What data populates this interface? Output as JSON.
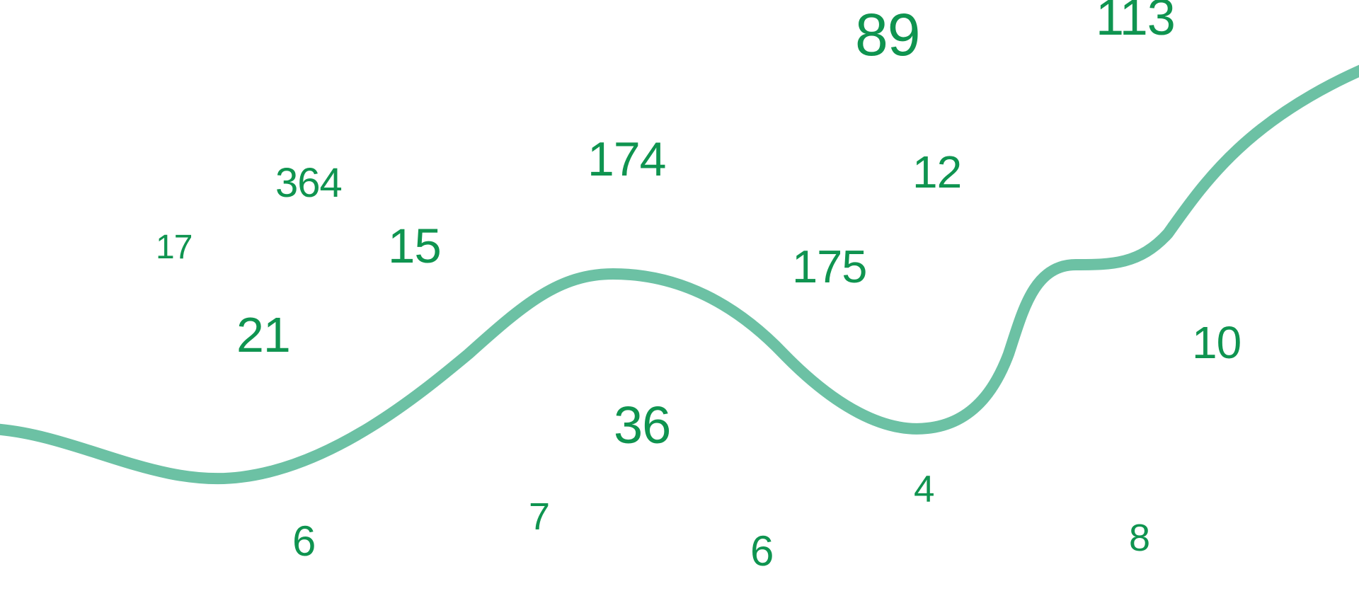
{
  "colors": {
    "number": "#0f9450",
    "curve": "#6cc1a4",
    "background": "#ffffff"
  },
  "numbers": [
    "89",
    "113",
    "174",
    "364",
    "12",
    "17",
    "15",
    "175",
    "21",
    "10",
    "36",
    "4",
    "6",
    "7",
    "6",
    "8"
  ]
}
